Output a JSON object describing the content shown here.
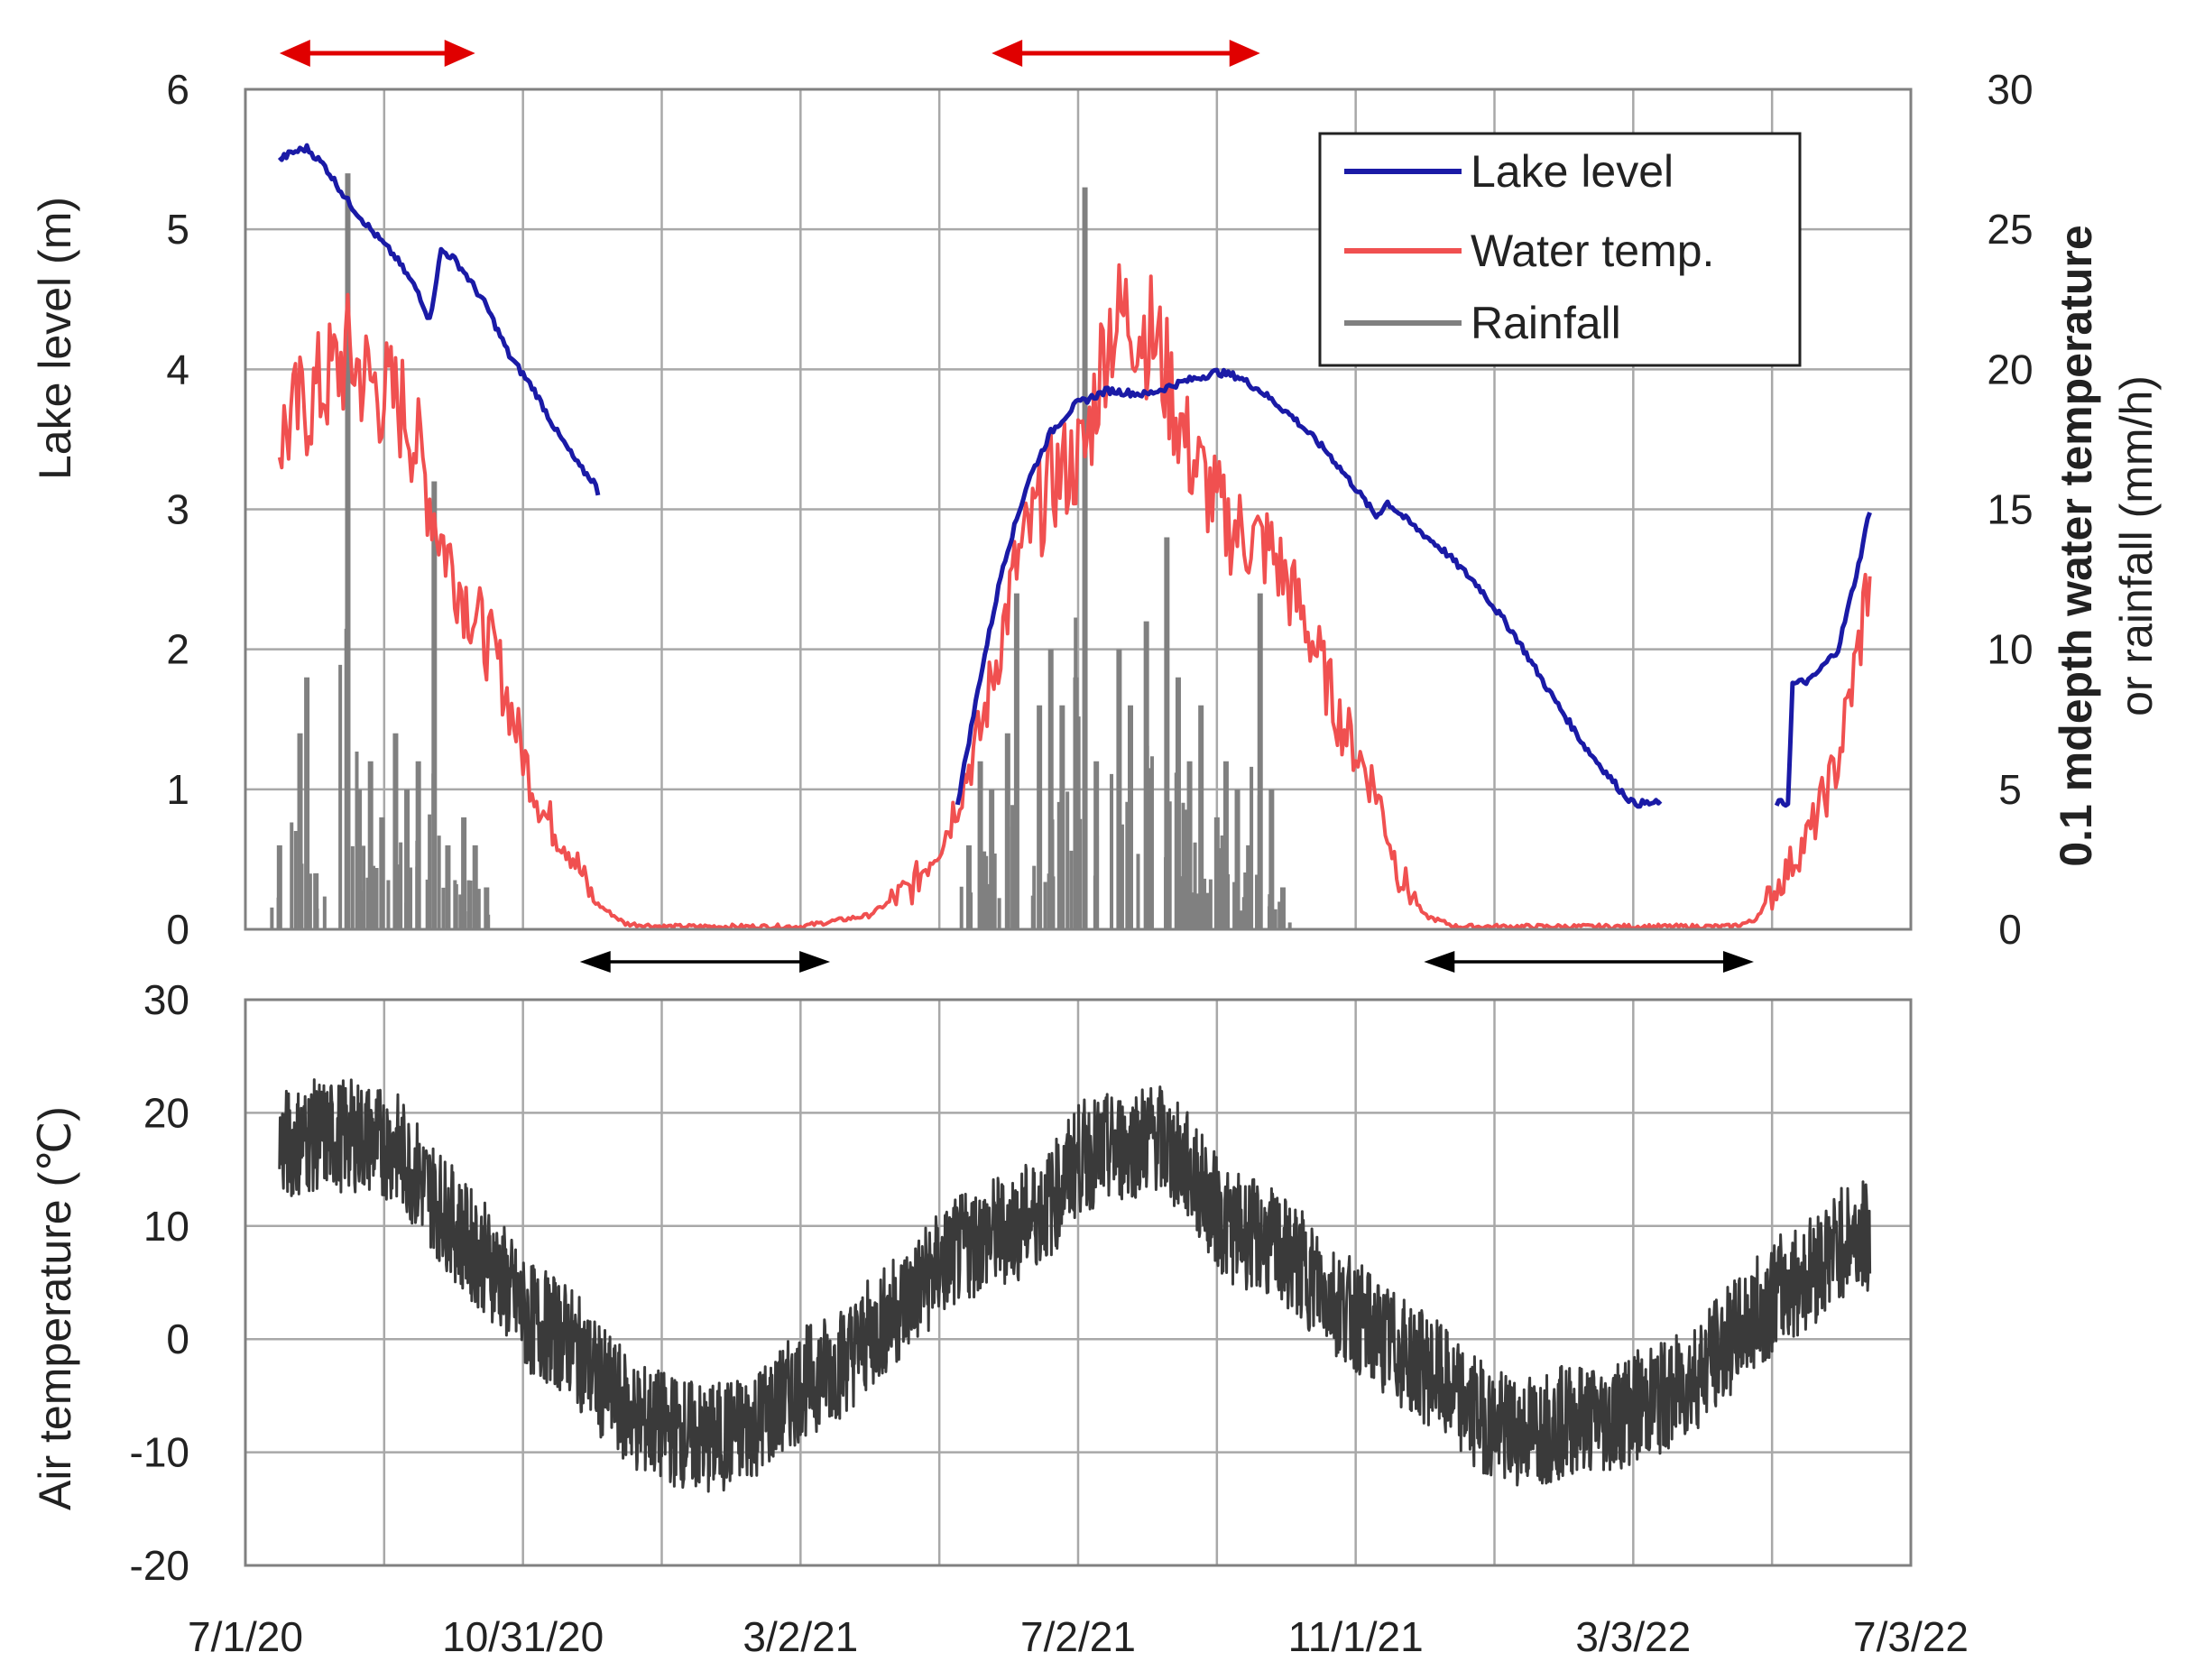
{
  "chart_data": [
    {
      "type": "line",
      "panel": "top",
      "ylabel_left": "Lake level (m)",
      "ylabel_right_line1": "0.1 mdepth water temperature",
      "ylabel_right_line2": "or rainfall (mm/h)",
      "ylim_left": [
        0,
        6
      ],
      "ylim_right": [
        0,
        30
      ],
      "yticks_left": [
        "0",
        "1",
        "2",
        "3",
        "4",
        "5",
        "6"
      ],
      "yticks_right": [
        "0",
        "5",
        "10",
        "15",
        "20",
        "25",
        "30"
      ],
      "xlim": [
        "2020-07-01",
        "2022-07-03"
      ],
      "grid": true,
      "legend_position": "top-right",
      "legend": [
        "Lake level",
        "Water temp.",
        "Rainfall"
      ],
      "series": [
        {
          "name": "Lake level",
          "axis": "left",
          "color": "#1a1aa6",
          "segments": [
            {
              "x": [
                "2020-07-16",
                "2020-07-22",
                "2020-07-28",
                "2020-08-05",
                "2020-08-15",
                "2020-08-25",
                "2020-09-05",
                "2020-09-15",
                "2020-09-20",
                "2020-09-25",
                "2020-09-30",
                "2020-10-05",
                "2020-10-15",
                "2020-10-25",
                "2020-11-05",
                "2020-11-15",
                "2020-11-25",
                "2020-12-01",
                "2020-12-03"
              ],
              "y": [
                5.5,
                5.55,
                5.58,
                5.45,
                5.2,
                5.0,
                4.8,
                4.55,
                4.35,
                4.85,
                4.8,
                4.7,
                4.45,
                4.1,
                3.85,
                3.55,
                3.3,
                3.2,
                3.12
              ]
            },
            {
              "x": [
                "2021-05-10",
                "2021-05-20",
                "2021-05-30",
                "2021-06-10",
                "2021-06-20",
                "2021-07-01",
                "2021-07-15",
                "2021-08-01",
                "2021-08-15",
                "2021-09-01",
                "2021-09-10",
                "2021-09-20",
                "2021-10-05",
                "2021-10-20",
                "2021-11-01",
                "2021-11-10",
                "2021-11-15",
                "2021-11-25",
                "2021-12-10",
                "2021-12-25",
                "2022-01-10",
                "2022-01-25",
                "2022-02-10",
                "2022-02-25",
                "2022-03-03",
                "2022-03-10",
                "2022-03-15"
              ],
              "y": [
                0.9,
                1.8,
                2.6,
                3.2,
                3.55,
                3.75,
                3.85,
                3.82,
                3.9,
                3.98,
                3.95,
                3.85,
                3.65,
                3.4,
                3.15,
                2.95,
                3.05,
                2.9,
                2.7,
                2.45,
                2.1,
                1.7,
                1.3,
                1.0,
                0.9,
                0.9,
                0.9
              ]
            },
            {
              "x": [
                "2022-05-05",
                "2022-05-10",
                "2022-05-12",
                "2022-05-20",
                "2022-06-01",
                "2022-06-10",
                "2022-06-15"
              ],
              "y": [
                0.9,
                0.9,
                1.75,
                1.78,
                2.0,
                2.6,
                3.0
              ]
            }
          ]
        },
        {
          "name": "Water temp.",
          "axis": "right",
          "color": "#f05050",
          "x": [
            "2020-07-16",
            "2020-07-25",
            "2020-08-05",
            "2020-08-15",
            "2020-08-25",
            "2020-09-10",
            "2020-09-25",
            "2020-10-05",
            "2020-10-20",
            "2020-11-01",
            "2020-11-10",
            "2020-11-20",
            "2020-12-01",
            "2020-12-15",
            "2021-01-01",
            "2021-02-01",
            "2021-03-02",
            "2021-04-01",
            "2021-04-20",
            "2021-05-05",
            "2021-05-20",
            "2021-06-05",
            "2021-06-20",
            "2021-07-05",
            "2021-07-15",
            "2021-07-25",
            "2021-08-05",
            "2021-08-20",
            "2021-09-05",
            "2021-09-25",
            "2021-10-10",
            "2021-10-25",
            "2021-11-10",
            "2021-11-20",
            "2021-12-01",
            "2021-12-15",
            "2022-01-15",
            "2022-02-15",
            "2022-03-15",
            "2022-04-15",
            "2022-04-25",
            "2022-05-05",
            "2022-05-20",
            "2022-06-01",
            "2022-06-10",
            "2022-06-15"
          ],
          "y": [
            17.5,
            18.5,
            19.5,
            20.5,
            19.5,
            18.5,
            14,
            12,
            9.5,
            6,
            4,
            3,
            1,
            0.2,
            0.1,
            0.1,
            0.1,
            0.5,
            1.5,
            3.5,
            7,
            13,
            16,
            17,
            21.5,
            22,
            21,
            17,
            14.5,
            13.5,
            11,
            7.5,
            5,
            2,
            0.5,
            0.1,
            0.1,
            0.1,
            0.1,
            0.1,
            0.3,
            1.5,
            3.5,
            6,
            10,
            13
          ]
        },
        {
          "name": "Rainfall",
          "axis": "right",
          "color": "#808080",
          "type": "bar",
          "x": [
            "2020-07-16",
            "2020-07-25",
            "2020-07-28",
            "2020-08-01",
            "2020-08-15",
            "2020-08-20",
            "2020-08-25",
            "2020-08-30",
            "2020-09-05",
            "2020-09-10",
            "2020-09-15",
            "2020-09-22",
            "2020-09-28",
            "2020-10-05",
            "2020-10-10",
            "2020-10-15",
            "2021-05-15",
            "2021-05-20",
            "2021-05-25",
            "2021-06-01",
            "2021-06-05",
            "2021-06-15",
            "2021-06-20",
            "2021-06-25",
            "2021-07-01",
            "2021-07-05",
            "2021-07-10",
            "2021-07-20",
            "2021-07-25",
            "2021-08-01",
            "2021-08-10",
            "2021-08-15",
            "2021-08-20",
            "2021-08-25",
            "2021-09-01",
            "2021-09-05",
            "2021-09-10",
            "2021-09-15",
            "2021-09-20",
            "2021-09-25",
            "2021-09-30"
          ],
          "y": [
            3,
            7,
            9,
            2,
            27,
            5,
            6,
            4,
            7,
            5,
            6,
            16,
            3,
            4,
            3,
            1.5,
            3,
            6,
            5,
            7,
            12,
            8,
            10,
            8,
            9,
            26.5,
            6,
            10,
            8,
            11,
            14,
            9,
            6,
            8,
            4,
            6,
            5,
            3,
            12,
            5,
            1.5
          ]
        }
      ],
      "annotations": [
        {
          "type": "double-arrow",
          "color": "#e00000",
          "x": [
            "2020-07-16",
            "2020-10-10"
          ],
          "position": "above"
        },
        {
          "type": "double-arrow",
          "color": "#e00000",
          "x": [
            "2021-05-25",
            "2021-09-20"
          ],
          "position": "above"
        },
        {
          "type": "double-arrow",
          "color": "#000000",
          "x": [
            "2020-11-25",
            "2021-03-15"
          ],
          "position": "below"
        },
        {
          "type": "double-arrow",
          "color": "#000000",
          "x": [
            "2021-12-01",
            "2022-04-25"
          ],
          "position": "below"
        }
      ]
    },
    {
      "type": "line",
      "panel": "bottom",
      "ylabel": "Air temperature (℃)",
      "ylim": [
        -20,
        30
      ],
      "yticks": [
        "-20",
        "-10",
        "0",
        "10",
        "20",
        "30"
      ],
      "xlim": [
        "2020-07-01",
        "2022-07-03"
      ],
      "xticks": [
        "7/1/20",
        "10/31/20",
        "3/2/21",
        "7/2/21",
        "11/1/21",
        "3/3/22",
        "7/3/22"
      ],
      "grid": true,
      "series": [
        {
          "name": "Air temperature",
          "color": "#3a3a3a",
          "x": [
            "2020-07-16",
            "2020-08-01",
            "2020-08-20",
            "2020-09-05",
            "2020-09-20",
            "2020-10-05",
            "2020-10-20",
            "2020-11-01",
            "2020-11-20",
            "2020-12-05",
            "2020-12-20",
            "2021-01-05",
            "2021-01-20",
            "2021-02-05",
            "2021-02-20",
            "2021-03-02",
            "2021-03-20",
            "2021-04-05",
            "2021-04-20",
            "2021-05-05",
            "2021-05-20",
            "2021-06-05",
            "2021-06-20",
            "2021-07-02",
            "2021-07-20",
            "2021-08-05",
            "2021-08-20",
            "2021-09-05",
            "2021-09-20",
            "2021-10-05",
            "2021-10-20",
            "2021-11-01",
            "2021-11-20",
            "2021-12-05",
            "2021-12-20",
            "2022-01-05",
            "2022-01-20",
            "2022-02-05",
            "2022-02-20",
            "2022-03-03",
            "2022-03-20",
            "2022-04-05",
            "2022-04-20",
            "2022-05-05",
            "2022-05-20",
            "2022-06-05",
            "2022-06-15"
          ],
          "y": [
            17,
            18,
            18,
            17,
            13,
            9,
            6,
            2,
            0,
            -4,
            -7,
            -8,
            -9,
            -8,
            -6,
            -4,
            -2,
            1,
            4,
            7,
            9,
            10,
            12,
            16,
            17,
            18,
            15,
            10,
            9,
            7,
            4,
            2,
            -1,
            -3,
            -6,
            -8,
            -8,
            -7,
            -7,
            -6,
            -5,
            -2,
            1,
            4,
            6,
            9,
            9
          ]
        }
      ]
    }
  ]
}
